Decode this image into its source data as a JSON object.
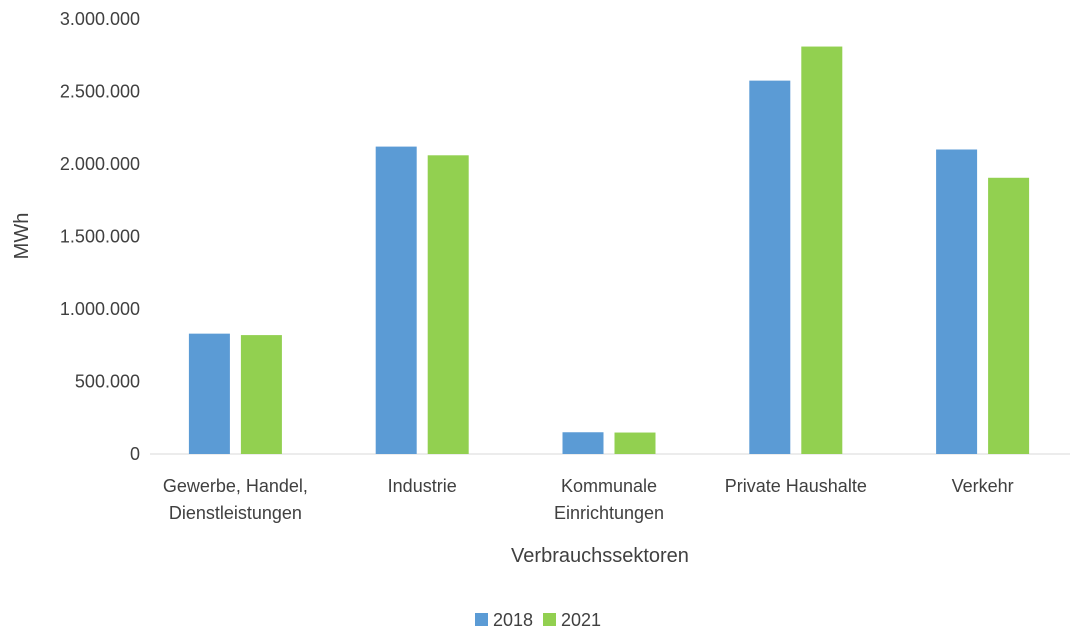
{
  "chart_data": {
    "type": "bar",
    "title": "",
    "xlabel": "Verbrauchssektoren",
    "ylabel": "MWh",
    "ylim": [
      0,
      3000000
    ],
    "yticks": [
      0,
      500000,
      1000000,
      1500000,
      2000000,
      2500000,
      3000000
    ],
    "ytick_labels": [
      "0",
      "500.000",
      "1.000.000",
      "1.500.000",
      "2.000.000",
      "2.500.000",
      "3.000.000"
    ],
    "categories": [
      [
        "Gewerbe, Handel,",
        "Dienstleistungen"
      ],
      [
        "Industrie"
      ],
      [
        "Kommunale",
        "Einrichtungen"
      ],
      [
        "Private Haushalte"
      ],
      [
        "Verkehr"
      ]
    ],
    "series": [
      {
        "name": "2018",
        "color": "#5B9BD5",
        "values": [
          830000,
          2120000,
          150000,
          2575000,
          2100000
        ]
      },
      {
        "name": "2021",
        "color": "#92D050",
        "values": [
          820000,
          2060000,
          148000,
          2810000,
          1905000
        ]
      }
    ],
    "grid": false,
    "legend_position": "bottom"
  }
}
